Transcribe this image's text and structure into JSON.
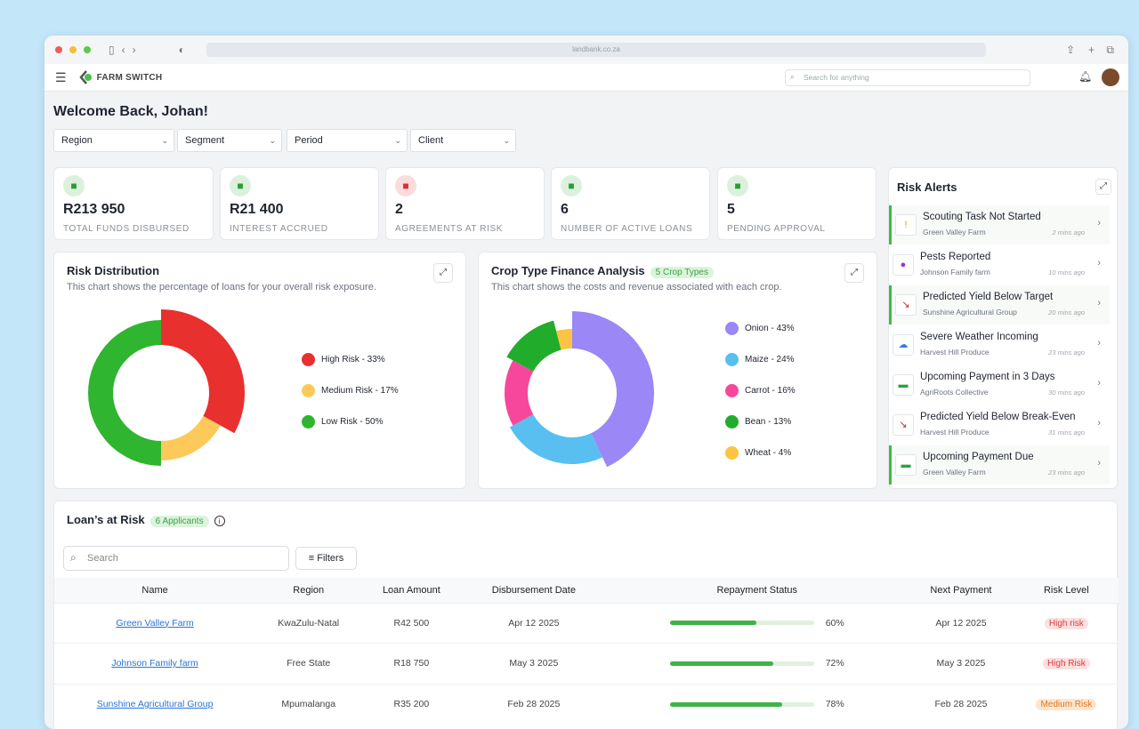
{
  "browser": {
    "url": "landbank.co.za"
  },
  "app": {
    "brand": "FARM SWITCH",
    "search_placeholder": "Search for anything"
  },
  "page": {
    "title": "Welcome Back, Johan!"
  },
  "filters": [
    "Region",
    "Segment",
    "Period",
    "Client"
  ],
  "stats": [
    {
      "value": "R213 950",
      "label": "TOTAL FUNDS DISBURSED",
      "icon": "cash-icon",
      "color": "#2d9a3a",
      "bg": "#dcf1dc"
    },
    {
      "value": "R21 400",
      "label": "INTEREST ACCRUED",
      "icon": "piggy-bank-icon",
      "color": "#2d9a3a",
      "bg": "#dcf1dc"
    },
    {
      "value": "2",
      "label": "AGREEMENTS AT RISK",
      "icon": "warning-icon",
      "color": "#d93030",
      "bg": "#fbdcdc"
    },
    {
      "value": "6",
      "label": "NUMBER OF ACTIVE LOANS",
      "icon": "checkbox-icon",
      "color": "#2d9a3a",
      "bg": "#dcf1dc"
    },
    {
      "value": "5",
      "label": "PENDING APPROVAL",
      "icon": "hourglass-icon",
      "color": "#2d9a3a",
      "bg": "#dcf1dc"
    }
  ],
  "risk_distribution": {
    "title": "Risk Distribution",
    "subtitle": "This chart shows the percentage of loans for your overall risk exposure."
  },
  "crop_analysis": {
    "title": "Crop Type Finance Analysis",
    "badge": "5 Crop Types",
    "subtitle": "This chart shows the costs and revenue associated with each crop."
  },
  "chart_data": [
    {
      "type": "pie",
      "title": "Risk Distribution",
      "categories": [
        "High Risk",
        "Medium Risk",
        "Low Risk"
      ],
      "values": [
        33,
        17,
        50
      ],
      "labels": [
        "High Risk - 33%",
        "Medium Risk - 17%",
        "Low Risk - 50%"
      ],
      "colors": [
        "#e8302f",
        "#fcc95a",
        "#2fb52f"
      ]
    },
    {
      "type": "pie",
      "title": "Crop Type Finance Analysis",
      "categories": [
        "Onion",
        "Maize",
        "Carrot",
        "Bean",
        "Wheat"
      ],
      "values": [
        43,
        24,
        16,
        13,
        4
      ],
      "labels": [
        "Onion - 43%",
        "Maize - 24%",
        "Carrot - 16%",
        "Bean - 13%",
        "Wheat - 4%"
      ],
      "colors": [
        "#9b87f5",
        "#58bff0",
        "#f7479c",
        "#21ad2b",
        "#fcc440"
      ]
    }
  ],
  "risk_alerts": {
    "title": "Risk Alerts",
    "items": [
      {
        "title": "Scouting Task Not Started",
        "subtitle": "Green Valley Farm",
        "time": "2 mins ago",
        "icon": "clipboard-alert-icon",
        "glyph": "!",
        "color": "#f39a1c",
        "highlight": true
      },
      {
        "title": "Pests Reported",
        "subtitle": "Johnson Family farm",
        "time": "10 mins ago",
        "icon": "bug-icon",
        "glyph": "●",
        "color": "#8a3ad8",
        "highlight": false
      },
      {
        "title": "Predicted Yield Below Target",
        "subtitle": "Sunshine Agricultural  Group",
        "time": "20 mins ago",
        "icon": "trend-down-icon",
        "glyph": "↘",
        "color": "#d42020",
        "highlight": true
      },
      {
        "title": "Severe Weather Incoming",
        "subtitle": "Harvest Hill Produce",
        "time": "23 mins ago",
        "icon": "rain-cloud-icon",
        "glyph": "☁",
        "color": "#2f7fe0",
        "highlight": false
      },
      {
        "title": "Upcoming Payment in 3 Days",
        "subtitle": "AgriRoots Collective",
        "time": "30 mins ago",
        "icon": "payment-clock-icon",
        "glyph": "▬",
        "color": "#2aa33a",
        "highlight": false
      },
      {
        "title": "Predicted Yield Below Break-Even",
        "subtitle": "Harvest Hill Produce",
        "time": "31 mins ago",
        "icon": "trend-down-icon",
        "glyph": "↘",
        "color": "#d42020",
        "highlight": false
      },
      {
        "title": "Upcoming Payment Due",
        "subtitle": "Green Valley Farm",
        "time": "23 mins ago",
        "icon": "payment-clock-icon",
        "glyph": "▬",
        "color": "#2aa33a",
        "highlight": true
      }
    ]
  },
  "loans": {
    "title": "Loan’s at Risk",
    "badge": "6 Applicants",
    "search_placeholder": "Search",
    "filters_label": "Filters",
    "columns": [
      "Name",
      "Region",
      "Loan Amount",
      "Disbursement Date",
      "Repayment Status",
      "Next Payment",
      "Risk Level"
    ],
    "rows": [
      {
        "name": "Green Valley Farm",
        "region": "KwaZulu-Natal",
        "amount": "R42 500",
        "disbursed": "Apr 12 2025",
        "repayment": 60,
        "repayment_label": "60%",
        "next": "Apr 12 2025",
        "risk": "High risk",
        "risk_color": "#e03a3a",
        "risk_bg": "#fde0e0"
      },
      {
        "name": "Johnson Family farm",
        "region": "Free State",
        "amount": "R18 750",
        "disbursed": "May 3 2025",
        "repayment": 72,
        "repayment_label": "72%",
        "next": "May 3 2025",
        "risk": "High Risk",
        "risk_color": "#e03a3a",
        "risk_bg": "#fde0e0"
      },
      {
        "name": "Sunshine Agricultural  Group",
        "region": "Mpumalanga",
        "amount": "R35 200",
        "disbursed": "Feb 28 2025",
        "repayment": 78,
        "repayment_label": "78%",
        "next": "Feb 28 2025",
        "risk": "Medium Risk",
        "risk_color": "#e0761a",
        "risk_bg": "#fde6cf"
      }
    ]
  }
}
